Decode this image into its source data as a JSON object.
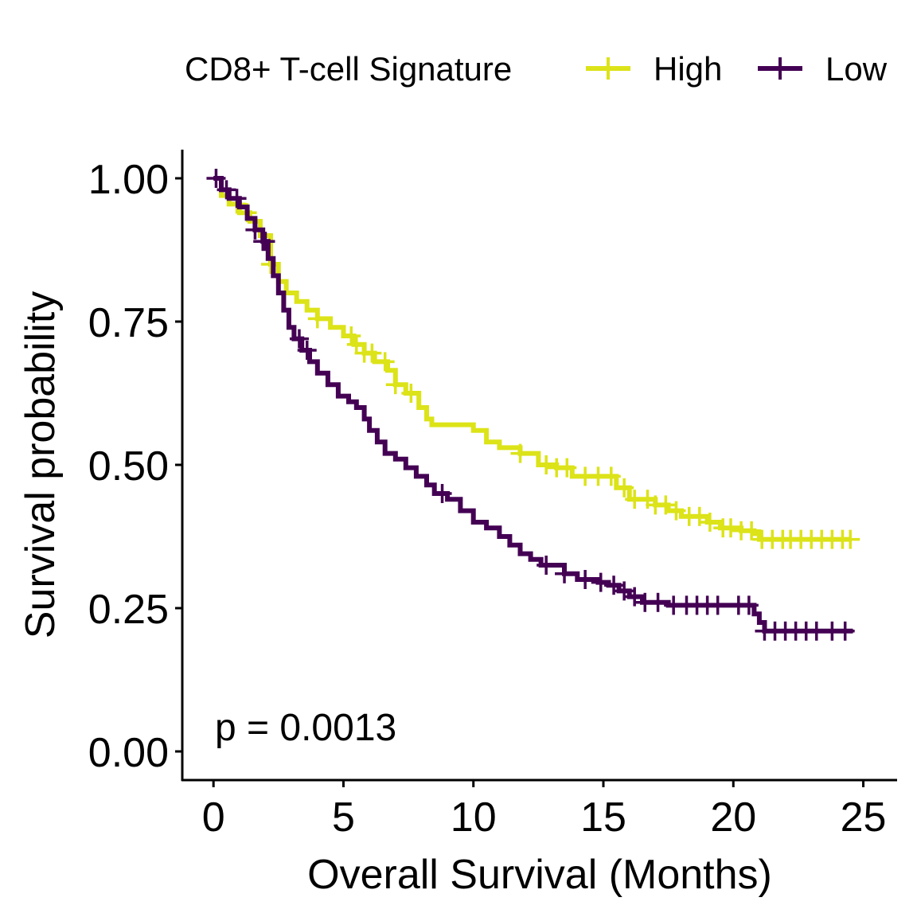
{
  "chart_data": {
    "type": "line",
    "subtype": "kaplan-meier",
    "title": "",
    "xlabel": "Overall Survival (Months)",
    "ylabel": "Survival probability",
    "xlim": [
      -1.2,
      26.3
    ],
    "ylim": [
      -0.05,
      1.05
    ],
    "xticks": [
      0,
      5,
      10,
      15,
      20,
      25
    ],
    "yticks": [
      0.0,
      0.25,
      0.5,
      0.75,
      1.0
    ],
    "xtick_labels": [
      "0",
      "5",
      "10",
      "15",
      "20",
      "25"
    ],
    "ytick_labels": [
      "0.00",
      "0.25",
      "0.50",
      "0.75",
      "1.00"
    ],
    "legend": {
      "title": "CD8+ T-cell Signature",
      "position": "top",
      "entries": [
        "High",
        "Low"
      ]
    },
    "annotation": "p = 0.0013",
    "grid": false,
    "series": [
      {
        "name": "High",
        "color": "#DCE318",
        "steps": [
          [
            0,
            1.0
          ],
          [
            0.3,
            0.97
          ],
          [
            0.6,
            0.955
          ],
          [
            1.0,
            0.94
          ],
          [
            1.4,
            0.925
          ],
          [
            1.8,
            0.9
          ],
          [
            2.2,
            0.85
          ],
          [
            2.5,
            0.82
          ],
          [
            2.8,
            0.8
          ],
          [
            3.2,
            0.785
          ],
          [
            3.6,
            0.77
          ],
          [
            4.0,
            0.755
          ],
          [
            4.5,
            0.74
          ],
          [
            5.0,
            0.725
          ],
          [
            5.4,
            0.71
          ],
          [
            5.8,
            0.695
          ],
          [
            6.2,
            0.68
          ],
          [
            6.7,
            0.665
          ],
          [
            7.0,
            0.64
          ],
          [
            7.4,
            0.625
          ],
          [
            7.9,
            0.6
          ],
          [
            8.2,
            0.58
          ],
          [
            8.4,
            0.57
          ],
          [
            10.0,
            0.56
          ],
          [
            10.5,
            0.54
          ],
          [
            11.0,
            0.53
          ],
          [
            11.8,
            0.52
          ],
          [
            12.5,
            0.5
          ],
          [
            13.2,
            0.495
          ],
          [
            13.8,
            0.48
          ],
          [
            15.5,
            0.46
          ],
          [
            16.0,
            0.44
          ],
          [
            17.0,
            0.43
          ],
          [
            17.5,
            0.42
          ],
          [
            18.0,
            0.41
          ],
          [
            19.0,
            0.4
          ],
          [
            19.5,
            0.39
          ],
          [
            20.3,
            0.385
          ],
          [
            20.8,
            0.38
          ],
          [
            21.0,
            0.37
          ]
        ],
        "end_time": 24.5,
        "censor_times": [
          0.9,
          1.3,
          2.2,
          4.0,
          5.3,
          5.5,
          5.8,
          6.1,
          6.6,
          7.0,
          7.6,
          11.8,
          12.8,
          13.2,
          13.6,
          14.3,
          14.8,
          15.3,
          15.8,
          16.2,
          16.7,
          17.0,
          17.4,
          17.8,
          18.3,
          18.7,
          19.1,
          19.6,
          19.9,
          20.3,
          20.7,
          21.1,
          21.5,
          21.9,
          22.2,
          22.6,
          23.0,
          23.4,
          23.8,
          24.2,
          24.5
        ]
      },
      {
        "name": "Low",
        "color": "#440154",
        "steps": [
          [
            0,
            1.0
          ],
          [
            0.3,
            0.98
          ],
          [
            0.6,
            0.965
          ],
          [
            1.0,
            0.95
          ],
          [
            1.3,
            0.93
          ],
          [
            1.6,
            0.91
          ],
          [
            1.9,
            0.89
          ],
          [
            2.1,
            0.86
          ],
          [
            2.3,
            0.83
          ],
          [
            2.5,
            0.8
          ],
          [
            2.7,
            0.77
          ],
          [
            2.9,
            0.74
          ],
          [
            3.1,
            0.72
          ],
          [
            3.4,
            0.7
          ],
          [
            3.7,
            0.68
          ],
          [
            4.0,
            0.66
          ],
          [
            4.4,
            0.64
          ],
          [
            4.8,
            0.62
          ],
          [
            5.2,
            0.61
          ],
          [
            5.5,
            0.6
          ],
          [
            5.8,
            0.58
          ],
          [
            6.0,
            0.56
          ],
          [
            6.3,
            0.54
          ],
          [
            6.6,
            0.52
          ],
          [
            7.0,
            0.51
          ],
          [
            7.4,
            0.495
          ],
          [
            7.8,
            0.48
          ],
          [
            8.2,
            0.465
          ],
          [
            8.5,
            0.45
          ],
          [
            9.0,
            0.44
          ],
          [
            9.5,
            0.42
          ],
          [
            10.0,
            0.4
          ],
          [
            10.5,
            0.39
          ],
          [
            11.0,
            0.375
          ],
          [
            11.4,
            0.36
          ],
          [
            11.8,
            0.345
          ],
          [
            12.2,
            0.335
          ],
          [
            12.6,
            0.325
          ],
          [
            13.5,
            0.31
          ],
          [
            14.0,
            0.3
          ],
          [
            14.8,
            0.295
          ],
          [
            15.2,
            0.29
          ],
          [
            15.6,
            0.28
          ],
          [
            16.0,
            0.27
          ],
          [
            16.5,
            0.26
          ],
          [
            17.5,
            0.255
          ],
          [
            20.8,
            0.24
          ],
          [
            21.0,
            0.225
          ],
          [
            21.2,
            0.21
          ]
        ],
        "end_time": 24.6,
        "censor_times": [
          0.1,
          0.5,
          0.9,
          1.6,
          1.9,
          2.0,
          3.3,
          3.6,
          8.8,
          12.8,
          13.5,
          14.3,
          14.9,
          15.4,
          15.8,
          16.2,
          16.6,
          17.1,
          17.7,
          18.2,
          18.6,
          19.0,
          19.4,
          20.2,
          20.6,
          21.2,
          21.6,
          22.0,
          22.4,
          22.8,
          23.2,
          23.8,
          24.3
        ]
      }
    ]
  }
}
